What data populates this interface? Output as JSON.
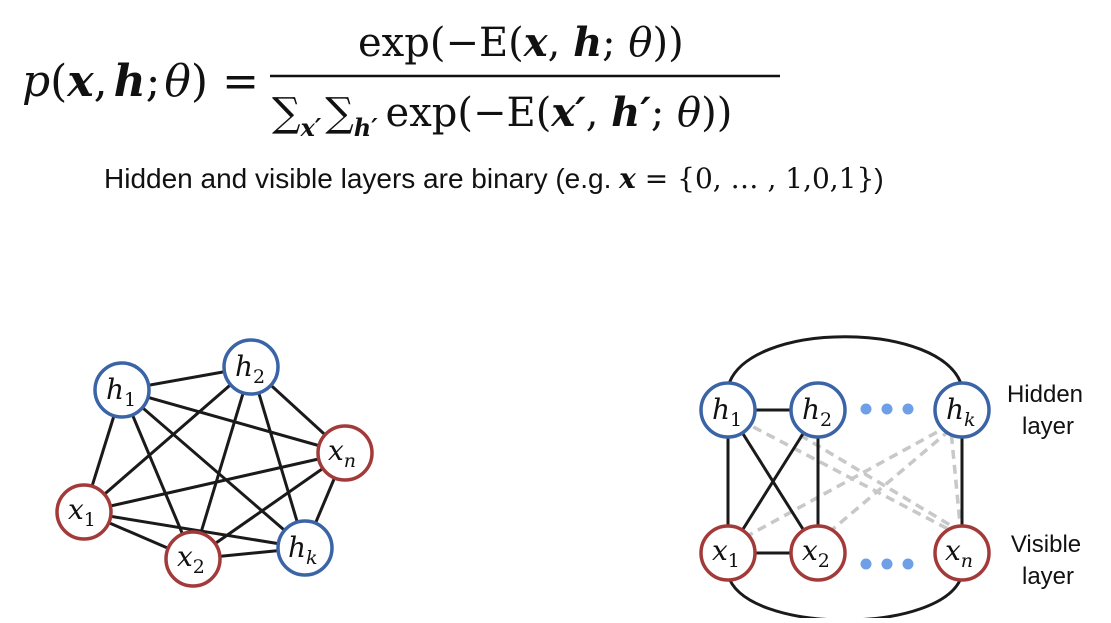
{
  "formula": {
    "lhs": {
      "p": "p",
      "open": "(",
      "x": "x",
      "comma": ",",
      "h": "h",
      "semi": ";",
      "theta": "θ",
      "close": ")",
      "eq": "="
    },
    "numerator": {
      "fn": "exp",
      "open": "(−E(",
      "x": "x",
      "comma": ", ",
      "h": "h",
      "semi": "; ",
      "theta": "θ",
      "close": "))"
    },
    "denominator": {
      "sum1": "∑",
      "sub1": "x′",
      "sum2": "∑",
      "sub2": "h′",
      "fn": "exp",
      "open": "(−E(",
      "x": "x′",
      "comma": ", ",
      "h": "h′",
      "semi": "; ",
      "theta": "θ",
      "close": "))"
    }
  },
  "note": {
    "text": "Hidden and visible layers are binary (e.g. ",
    "var": "x",
    "eq": " = ",
    "value": "{0, … , 1,0,1}",
    "close": ")"
  },
  "left_graph": {
    "nodes": [
      {
        "id": "h1",
        "base": "h",
        "sub": "1",
        "type": "hidden"
      },
      {
        "id": "h2",
        "base": "h",
        "sub": "2",
        "type": "hidden"
      },
      {
        "id": "xn",
        "base": "x",
        "sub": "n",
        "type": "visible"
      },
      {
        "id": "hk",
        "base": "h",
        "sub": "k",
        "type": "hidden"
      },
      {
        "id": "x2",
        "base": "x",
        "sub": "2",
        "type": "visible"
      },
      {
        "id": "x1",
        "base": "x",
        "sub": "1",
        "type": "visible"
      }
    ]
  },
  "right_graph": {
    "hidden": [
      {
        "id": "h1",
        "base": "h",
        "sub": "1"
      },
      {
        "id": "h2",
        "base": "h",
        "sub": "2"
      },
      {
        "id": "hk",
        "base": "h",
        "sub": "k"
      }
    ],
    "visible": [
      {
        "id": "x1",
        "base": "x",
        "sub": "1"
      },
      {
        "id": "x2",
        "base": "x",
        "sub": "2"
      },
      {
        "id": "xn",
        "base": "x",
        "sub": "n"
      }
    ],
    "hidden_label": [
      "Hidden",
      "layer"
    ],
    "visible_label": [
      "Visible",
      "layer"
    ]
  },
  "colors": {
    "hidden": "#3a64a6",
    "visible": "#a33a3a",
    "edge": "#1a1a1a",
    "dashed": "#c8c8c8",
    "dots": "#6f9fe6"
  }
}
